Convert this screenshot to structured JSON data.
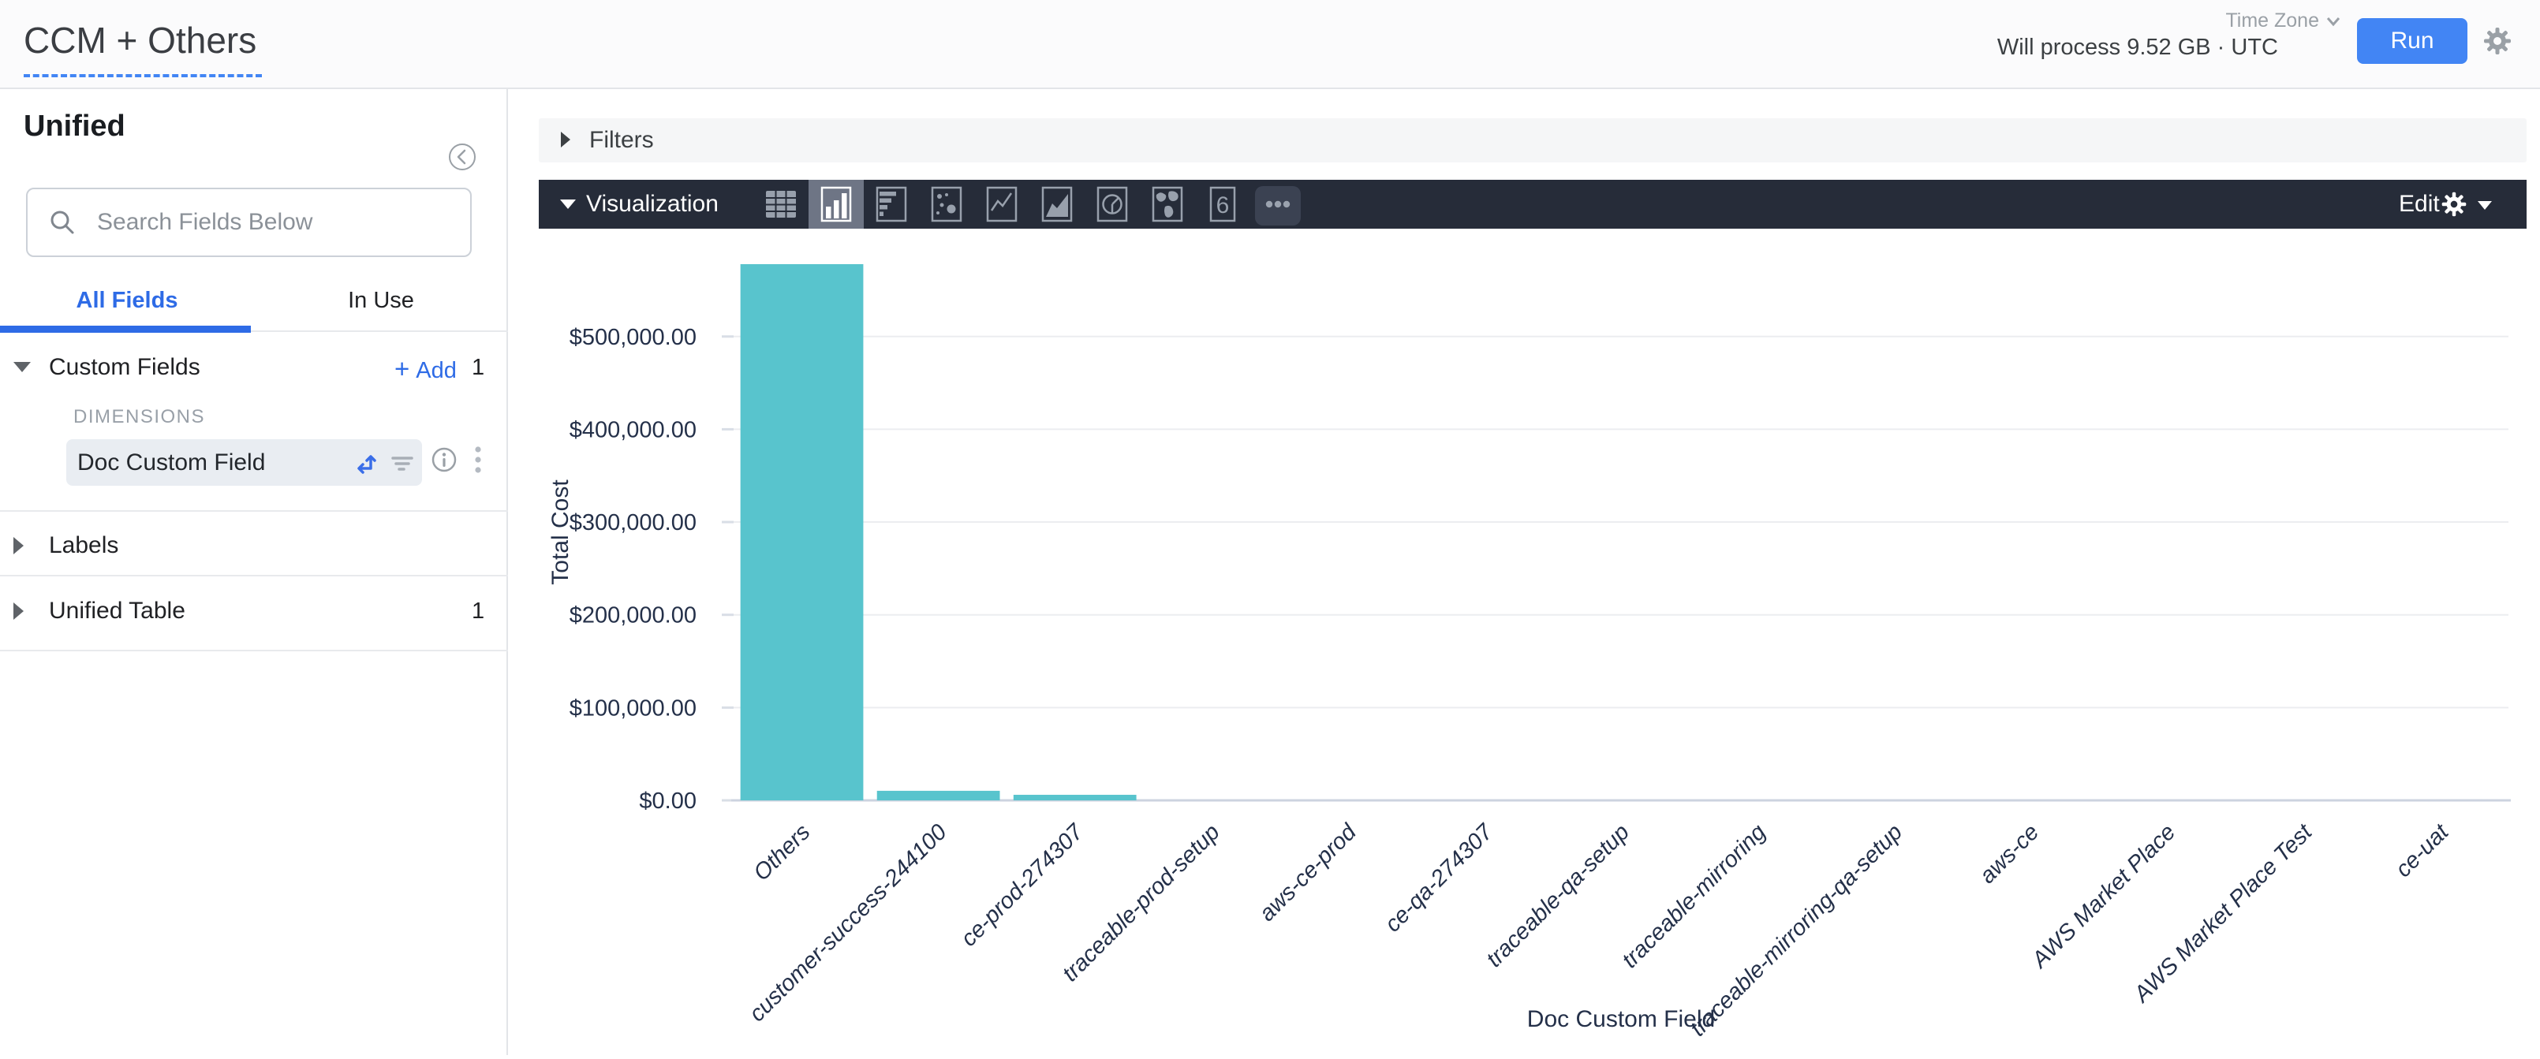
{
  "header": {
    "title": "CCM + Others",
    "process_text": "Will process 9.52 GB · UTC",
    "time_zone_label": "Time Zone",
    "run_label": "Run"
  },
  "sidebar": {
    "title": "Unified",
    "search_placeholder": "Search Fields Below",
    "tabs": {
      "all_fields": "All Fields",
      "in_use": "In Use"
    },
    "custom_fields": {
      "label": "Custom Fields",
      "plus": "+",
      "add_label": "Add",
      "count": "1",
      "group_label": "DIMENSIONS",
      "field_name": "Doc Custom Field"
    },
    "labels_section": {
      "label": "Labels"
    },
    "unified_table_section": {
      "label": "Unified Table",
      "count": "1"
    }
  },
  "main": {
    "filters_label": "Filters",
    "viz": {
      "label": "Visualization",
      "edit_label": "Edit",
      "single_value_glyph": "6",
      "types": [
        "table",
        "column",
        "bar",
        "scatter",
        "line",
        "area",
        "pie",
        "map",
        "single-value",
        "more"
      ],
      "active_type": "column"
    }
  },
  "chart_data": {
    "type": "bar",
    "title": "",
    "xlabel": "Doc Custom Field",
    "ylabel": "Total Cost",
    "categories": [
      "Others",
      "customer-success-244100",
      "ce-prod-274307",
      "traceable-prod-setup",
      "aws-ce-prod",
      "ce-qa-274307",
      "traceable-qa-setup",
      "traceable-mirroring",
      "traceable-mirroring-qa-setup",
      "aws-ce",
      "AWS Market Place",
      "AWS Market Place Test",
      "ce-uat"
    ],
    "values": [
      578000,
      10300,
      6000,
      0,
      0,
      0,
      0,
      0,
      0,
      0,
      0,
      0,
      0
    ],
    "ylim": [
      0,
      578000
    ],
    "yticks": [
      {
        "value": 500000,
        "label": "$500,000.00"
      },
      {
        "value": 400000,
        "label": "$400,000.00"
      },
      {
        "value": 300000,
        "label": "$300,000.00"
      },
      {
        "value": 200000,
        "label": "$200,000.00"
      },
      {
        "value": 100000,
        "label": "$100,000.00"
      },
      {
        "value": 0,
        "label": "$0.00"
      }
    ],
    "bar_color": "#58c4cd",
    "text_color": "#243049",
    "grid": true,
    "legend_position": "none"
  }
}
